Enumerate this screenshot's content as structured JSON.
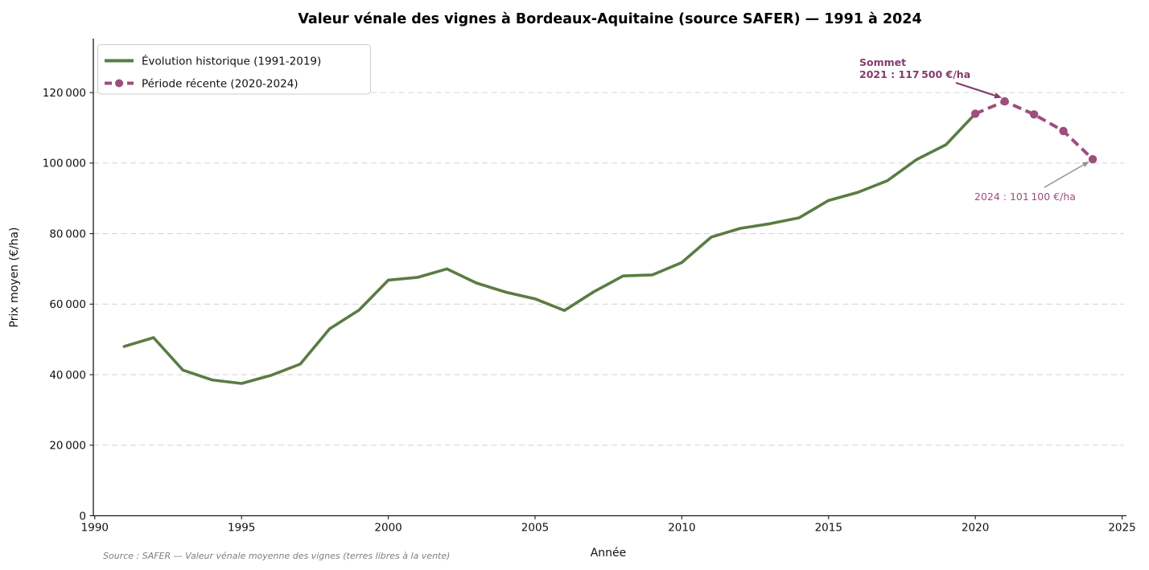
{
  "figure": {
    "source_note": "Source : SAFER — Valeur vénale moyenne des vignes (terres libres à la vente)"
  },
  "chart_data": {
    "type": "line",
    "title": "Valeur vénale des vignes à Bordeaux-Aquitaine (source SAFER) — 1991 à 2024",
    "xlabel": "Année",
    "ylabel": "Prix moyen (€/ha)",
    "xlim": [
      1989.95,
      2025.15
    ],
    "ylim": [
      0,
      135300
    ],
    "grid": "horizontal dashed light-gray",
    "legend_position": "upper left",
    "x_ticks": [
      {
        "value": 1990,
        "label": "1990"
      },
      {
        "value": 1995,
        "label": "1995"
      },
      {
        "value": 2000,
        "label": "2000"
      },
      {
        "value": 2005,
        "label": "2005"
      },
      {
        "value": 2010,
        "label": "2010"
      },
      {
        "value": 2015,
        "label": "2015"
      },
      {
        "value": 2020,
        "label": "2020"
      },
      {
        "value": 2025,
        "label": "2025"
      }
    ],
    "y_ticks": [
      {
        "value": 0,
        "label": "0"
      },
      {
        "value": 20000,
        "label": "20 000"
      },
      {
        "value": 40000,
        "label": "40 000"
      },
      {
        "value": 60000,
        "label": "60 000"
      },
      {
        "value": 80000,
        "label": "80 000"
      },
      {
        "value": 100000,
        "label": "100 000"
      },
      {
        "value": 120000,
        "label": "120 000"
      }
    ],
    "series": [
      {
        "name": "Évolution historique (1991-2019)",
        "color": "#5a7c44",
        "line_style": "solid",
        "line_width": 3.6,
        "marker": "none",
        "x": [
          1991,
          1992,
          1993,
          1994,
          1995,
          1996,
          1997,
          1998,
          1999,
          2000,
          2001,
          2002,
          2003,
          2004,
          2005,
          2006,
          2007,
          2008,
          2009,
          2010,
          2011,
          2012,
          2013,
          2014,
          2015,
          2016,
          2017,
          2018,
          2019
        ],
        "values": [
          48000,
          50500,
          41300,
          38500,
          37500,
          39800,
          43000,
          53000,
          58300,
          66800,
          67600,
          70000,
          66000,
          63400,
          61500,
          58200,
          63500,
          68000,
          68300,
          71800,
          79000,
          81500,
          82800,
          84500,
          89400,
          91700,
          95000,
          101000,
          105200
        ]
      },
      {
        "name": "Période récente (2020-2024)",
        "color": "#9c4f7c",
        "line_style": "dashed",
        "line_width": 4,
        "marker": "circle",
        "x": [
          2020,
          2021,
          2022,
          2023,
          2024
        ],
        "values": [
          114000,
          117500,
          113800,
          109100,
          101100
        ]
      }
    ],
    "annotations": [
      {
        "name": "sommet",
        "lines": [
          "Sommet",
          "2021 : 117 500 €/ha"
        ],
        "color": "#863b6e",
        "arrow_color": "#863b6e",
        "target": {
          "year": 2021,
          "value": 117500
        }
      },
      {
        "name": "dernier-point",
        "lines": [
          "2024 : 101 100 €/ha"
        ],
        "color": "#9a4f7d",
        "arrow_color": "#909090",
        "target": {
          "year": 2024,
          "value": 101100
        }
      }
    ]
  }
}
